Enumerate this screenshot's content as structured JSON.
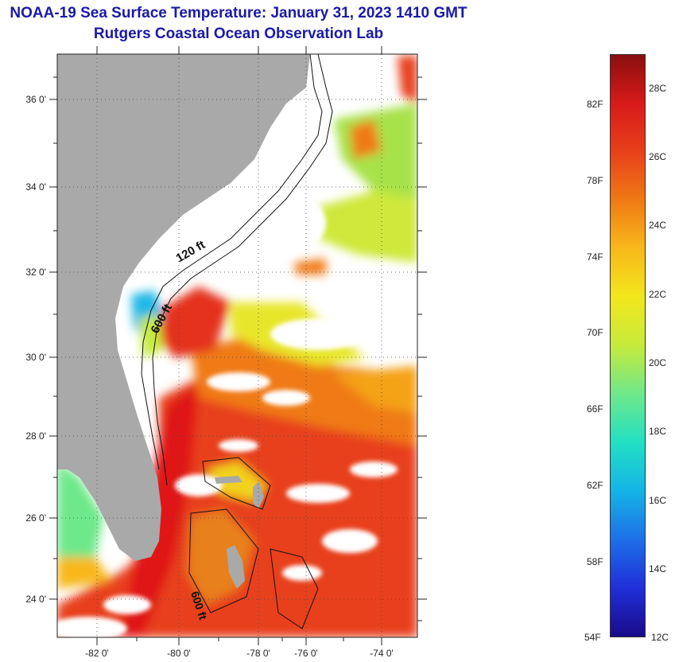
{
  "header": {
    "title": "NOAA-19 Sea Surface Temperature:  January 31, 2023 1410 GMT",
    "subtitle": "Rutgers Coastal Ocean Observation Lab"
  },
  "map": {
    "lat_ticks": [
      "36 0'",
      "34 0'",
      "32 0'",
      "30 0'",
      "28 0'",
      "26 0'",
      "24 0'"
    ],
    "lon_ticks": [
      "-82 0'",
      "-80 0'",
      "-78 0'",
      "-76 0'",
      "-74 0'"
    ],
    "contour_labels": [
      "120 ft",
      "600 ft",
      "600 ft"
    ],
    "lat_range": [
      23,
      37
    ],
    "lon_range": [
      -83,
      -73
    ]
  },
  "colorbar": {
    "fahrenheit_labels": [
      "82F",
      "78F",
      "74F",
      "70F",
      "66F",
      "62F",
      "58F",
      "54F"
    ],
    "celsius_labels": [
      "28C",
      "26C",
      "24C",
      "22C",
      "20C",
      "18C",
      "16C",
      "14C",
      "12C"
    ],
    "range_c": [
      12,
      29.5
    ],
    "colors": [
      "#1a0a8a",
      "#1f2fd8",
      "#1e6fe8",
      "#14b4e6",
      "#22e0c4",
      "#6ee88a",
      "#c6ea3c",
      "#f2e71c",
      "#f8b81a",
      "#f07a14",
      "#e8401a",
      "#d81a1a",
      "#8a0e0e"
    ]
  },
  "colors": {
    "title": "#1a1aa6",
    "land": "#a9a9a9",
    "cloud": "#ffffff"
  }
}
